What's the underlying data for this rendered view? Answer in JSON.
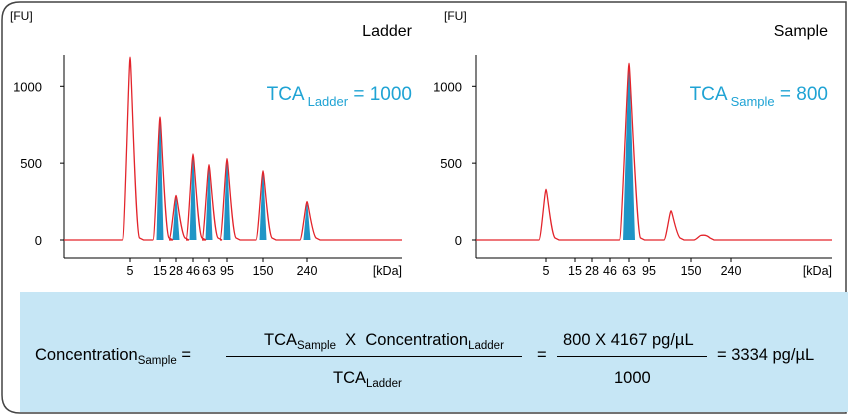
{
  "colors": {
    "trace": "#e3242b",
    "peak_fill": "#1f95c6",
    "accent_text": "#1fa3d4",
    "formula_bg": "#c6e6f5",
    "axis": "#000000"
  },
  "chart_data": [
    {
      "type": "line",
      "title": "Ladder",
      "ylabel": "[FU]",
      "xlabel": "[kDa]",
      "yticks": [
        0,
        500,
        1000
      ],
      "ylim": [
        -5,
        1270
      ],
      "xtick_labels": [
        "5",
        "15",
        "28",
        "46",
        "63",
        "95",
        "150",
        "240"
      ],
      "annotation": {
        "prefix": "TCA",
        "subscript": "Ladder",
        "suffix": " = 1000"
      },
      "grid": false,
      "series": [
        {
          "baseline": 0,
          "peaks": [
            {
              "x": "5",
              "height": 1190,
              "shaded": false
            },
            {
              "x": "15",
              "height": 800,
              "shaded": true
            },
            {
              "x": "28",
              "height": 290,
              "shaded": true
            },
            {
              "x": "46",
              "height": 560,
              "shaded": true
            },
            {
              "x": "63",
              "height": 490,
              "shaded": true
            },
            {
              "x": "95",
              "height": 530,
              "shaded": true
            },
            {
              "x": "150",
              "height": 450,
              "shaded": true
            },
            {
              "x": "240",
              "height": 250,
              "shaded": true
            }
          ]
        }
      ]
    },
    {
      "type": "line",
      "title": "Sample",
      "ylabel": "[FU]",
      "xlabel": "[kDa]",
      "yticks": [
        0,
        500,
        1000
      ],
      "ylim": [
        -5,
        1270
      ],
      "xtick_labels": [
        "5",
        "15",
        "28",
        "46",
        "63",
        "95",
        "150",
        "240"
      ],
      "annotation": {
        "prefix": "TCA",
        "subscript": "Sample",
        "suffix": " = 800"
      },
      "grid": false,
      "series": [
        {
          "baseline": 0,
          "peaks": [
            {
              "x": "5",
              "height": 330,
              "shaded": false
            },
            {
              "x": "63",
              "height": 1150,
              "shaded": true
            },
            {
              "x": "120",
              "height": 190,
              "shaded": false
            },
            {
              "x": "180",
              "height": 30,
              "shaded": false
            }
          ]
        }
      ]
    }
  ],
  "formula": {
    "lhs_main": "Concentration",
    "lhs_sub": "Sample",
    "eq": "=",
    "num1_tca": "TCA",
    "num1_tca_sub": "Sample",
    "num1_x": "X",
    "num1_conc": "Concentration",
    "num1_conc_sub": "Ladder",
    "den1_tca": "TCA",
    "den1_sub": "Ladder",
    "num2": "800 X 4167 pg/µL",
    "den2": "1000",
    "result": "= 3334 pg/µL"
  }
}
